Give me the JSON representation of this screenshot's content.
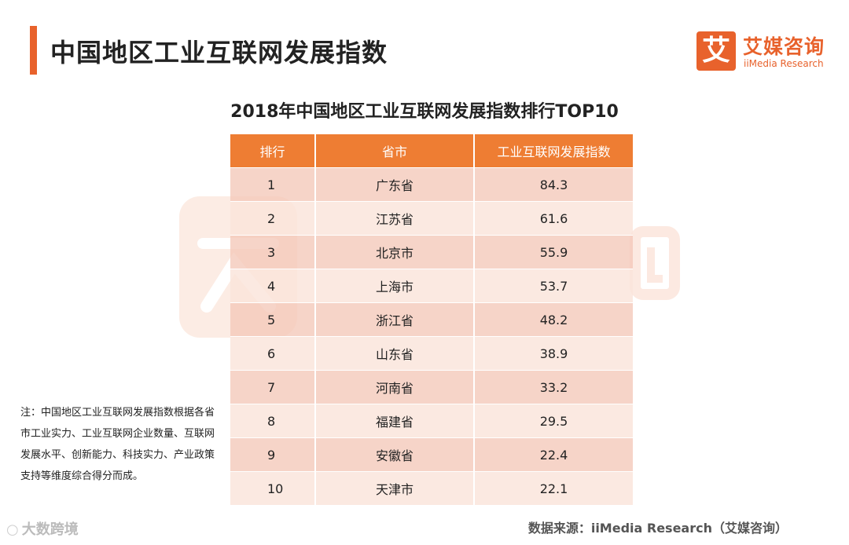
{
  "header": {
    "title": "中国地区工业互联网发展指数"
  },
  "logo": {
    "mark": "艾",
    "cn": "艾媒咨询",
    "en": "iiMedia Research"
  },
  "chart_data": {
    "type": "table",
    "title": "2018年中国地区工业互联网发展指数排行TOP10",
    "columns": [
      "排行",
      "省市",
      "工业互联网发展指数"
    ],
    "rows": [
      {
        "rank": "1",
        "region": "广东省",
        "value": "84.3"
      },
      {
        "rank": "2",
        "region": "江苏省",
        "value": "61.6"
      },
      {
        "rank": "3",
        "region": "北京市",
        "value": "55.9"
      },
      {
        "rank": "4",
        "region": "上海市",
        "value": "53.7"
      },
      {
        "rank": "5",
        "region": "浙江省",
        "value": "48.2"
      },
      {
        "rank": "6",
        "region": "山东省",
        "value": "38.9"
      },
      {
        "rank": "7",
        "region": "河南省",
        "value": "33.2"
      },
      {
        "rank": "8",
        "region": "福建省",
        "value": "29.5"
      },
      {
        "rank": "9",
        "region": "安徽省",
        "value": "22.4"
      },
      {
        "rank": "10",
        "region": "天津市",
        "value": "22.1"
      }
    ]
  },
  "note": "注：中国地区工业互联网发展指数根据各省市工业实力、工业互联网企业数量、互联网发展水平、创新能力、科技实力、产业政策支持等维度综合得分而成。",
  "source": "数据来源：iiMedia Research（艾媒咨询）",
  "footer_mark": "大数跨境",
  "colors": {
    "accent": "#e8622c",
    "header_fill": "#ee7d33",
    "row_odd": "#f4c8b8",
    "row_even": "#fae4db"
  }
}
